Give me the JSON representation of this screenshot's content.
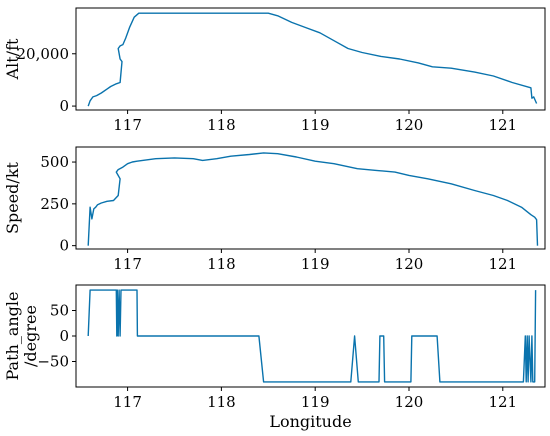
{
  "chart_data": [
    {
      "type": "line",
      "ylabel": "Alt/ft",
      "xlim": [
        116.45,
        121.45
      ],
      "ylim": [
        -1500,
        37500
      ],
      "x_ticks": [
        117,
        118,
        119,
        120,
        121
      ],
      "x_tick_labels": [
        "117",
        "118",
        "119",
        "120",
        "121"
      ],
      "y_ticks": [
        0,
        20000
      ],
      "y_tick_labels": [
        "0",
        "20,000"
      ],
      "color": "#0a73ad",
      "series": [
        {
          "x": [
            116.58,
            116.6,
            116.63,
            116.67,
            116.72,
            116.78,
            116.82,
            116.88,
            116.92,
            116.94,
            116.92,
            116.9,
            116.92,
            116.95,
            116.98,
            117.02,
            117.07,
            117.12,
            117.3,
            117.5,
            117.8,
            118.1,
            118.5,
            118.6,
            118.75,
            118.9,
            119.05,
            119.2,
            119.35,
            119.5,
            119.7,
            119.9,
            120.1,
            120.25,
            120.45,
            120.7,
            120.9,
            121.1,
            121.3,
            121.31,
            121.33,
            121.36
          ],
          "y": [
            0,
            2000,
            3500,
            4000,
            5000,
            6500,
            7500,
            8500,
            9000,
            17000,
            18000,
            22000,
            23000,
            23500,
            26000,
            30000,
            34000,
            35500,
            35500,
            35500,
            35500,
            35500,
            35500,
            34500,
            32000,
            30000,
            28000,
            25000,
            22000,
            20500,
            19000,
            18000,
            16500,
            15000,
            14500,
            13000,
            11500,
            9000,
            7000,
            3000,
            3500,
            1000
          ]
        }
      ]
    },
    {
      "type": "line",
      "ylabel": "Speed/kt",
      "xlim": [
        116.45,
        121.45
      ],
      "ylim": [
        -20,
        590
      ],
      "x_ticks": [
        117,
        118,
        119,
        120,
        121
      ],
      "x_tick_labels": [
        "117",
        "118",
        "119",
        "120",
        "121"
      ],
      "y_ticks": [
        0,
        250,
        500
      ],
      "y_tick_labels": [
        "0",
        "250",
        "500"
      ],
      "color": "#0a73ad",
      "series": [
        {
          "x": [
            116.58,
            116.6,
            116.62,
            116.64,
            116.66,
            116.68,
            116.72,
            116.78,
            116.85,
            116.9,
            116.92,
            116.88,
            116.9,
            116.95,
            117.0,
            117.05,
            117.1,
            117.3,
            117.5,
            117.7,
            117.8,
            117.95,
            118.1,
            118.3,
            118.45,
            118.6,
            118.8,
            119.0,
            119.2,
            119.45,
            119.65,
            119.85,
            120.0,
            120.2,
            120.45,
            120.7,
            120.9,
            121.05,
            121.2,
            121.3,
            121.34,
            121.36,
            121.37
          ],
          "y": [
            0,
            230,
            160,
            220,
            230,
            245,
            255,
            265,
            270,
            300,
            400,
            440,
            455,
            470,
            490,
            500,
            505,
            520,
            525,
            520,
            510,
            520,
            535,
            545,
            555,
            550,
            530,
            505,
            490,
            460,
            450,
            440,
            420,
            400,
            370,
            330,
            300,
            270,
            230,
            185,
            170,
            155,
            0
          ]
        }
      ]
    },
    {
      "type": "line",
      "xlabel": "Longitude",
      "ylabel": "Path_angle\n/degree",
      "ylabel_lines": [
        "Path_angle",
        "/degree"
      ],
      "xlim": [
        116.45,
        121.45
      ],
      "ylim": [
        -100,
        100
      ],
      "x_ticks": [
        117,
        118,
        119,
        120,
        121
      ],
      "x_tick_labels": [
        "117",
        "118",
        "119",
        "120",
        "121"
      ],
      "y_ticks": [
        -50,
        0,
        50
      ],
      "y_tick_labels": [
        "−50",
        "0",
        "50"
      ],
      "color": "#0a73ad",
      "series": [
        {
          "x": [
            116.58,
            116.6,
            116.88,
            116.885,
            116.89,
            116.9,
            116.91,
            116.92,
            116.93,
            116.94,
            117.1,
            117.105,
            118.4,
            118.45,
            118.55,
            119.38,
            119.42,
            119.46,
            119.68,
            119.69,
            119.73,
            119.74,
            120.02,
            120.03,
            120.1,
            120.12,
            120.3,
            120.33,
            121.22,
            121.24,
            121.25,
            121.26,
            121.27,
            121.28,
            121.3,
            121.31,
            121.32,
            121.33,
            121.34,
            121.35
          ],
          "y": [
            0,
            90,
            90,
            0,
            90,
            0,
            90,
            0,
            90,
            90,
            90,
            0,
            0,
            -90,
            -90,
            -90,
            0,
            -90,
            -90,
            0,
            0,
            -90,
            -90,
            0,
            0,
            0,
            0,
            -90,
            -90,
            0,
            -90,
            0,
            -90,
            0,
            -90,
            0,
            -90,
            -90,
            -90,
            90
          ]
        }
      ]
    }
  ]
}
